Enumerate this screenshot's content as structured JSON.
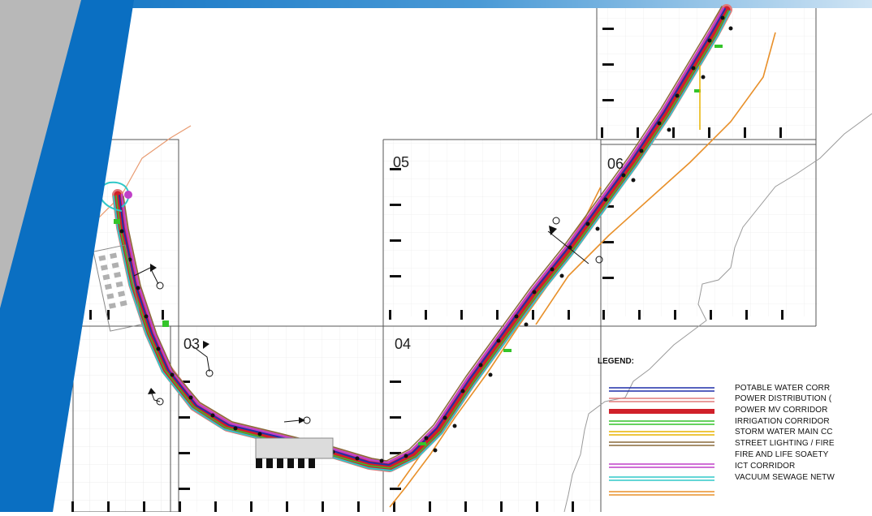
{
  "sheets": [
    "05",
    "06",
    "03",
    "04"
  ],
  "legend": {
    "title": "LEGEND:",
    "items": [
      {
        "label": "POTABLE WATER CORR",
        "color": "#1f2fa8"
      },
      {
        "label": "POWER DISTRIBUTION (",
        "color": "#e07a7a"
      },
      {
        "label": "POWER  MV CORRIDOR",
        "color": "#d0202a"
      },
      {
        "label": "IRRIGATION CORRIDOR",
        "color": "#34c42a"
      },
      {
        "label": "STORM WATER MAIN CC",
        "color": "#e8b300"
      },
      {
        "label": "STREET LIGHTING / FIRE",
        "color": "#8a6a3a"
      },
      {
        "label": "FIRE AND LIFE SOAETY",
        "color": "#c040c8"
      },
      {
        "label": "ICT CORRIDOR",
        "color": "#30c8c8"
      },
      {
        "label": "VACUUM SEWAGE NETW",
        "color": "#e8902a"
      }
    ]
  },
  "colors": {
    "banner_blue": "#0a6fc2",
    "banner_gray": "#b8b8b8",
    "water": "#1f2fa8",
    "power_dist": "#e07a7a",
    "power_mv": "#d0202a",
    "irrigation": "#34c42a",
    "storm": "#e8b300",
    "street": "#8a6a3a",
    "fire": "#c040c8",
    "ict": "#30c8c8",
    "sewage": "#e8902a"
  }
}
